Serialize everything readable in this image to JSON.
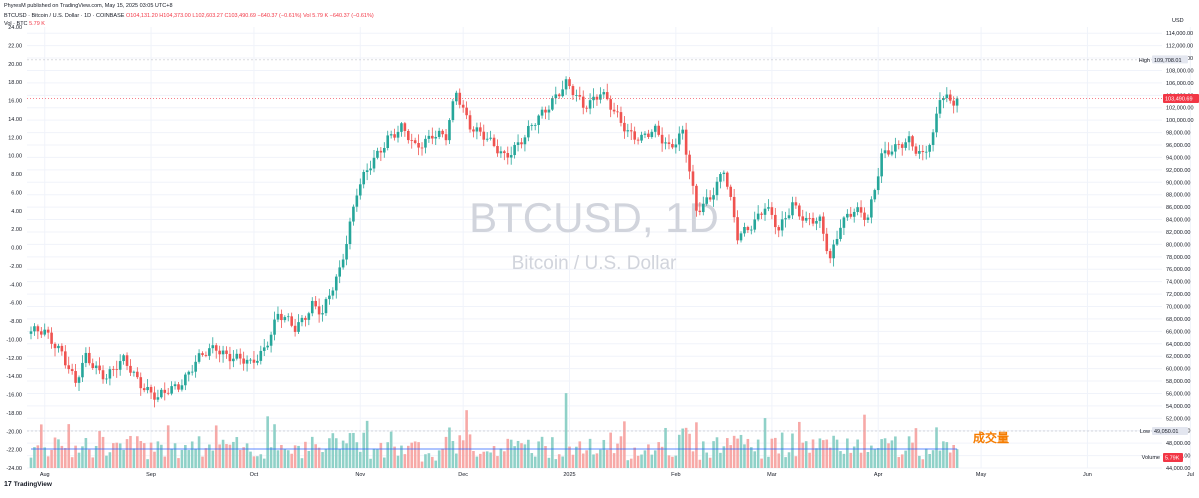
{
  "header": {
    "publisher_line": "PhyresM published on TradingView.com, May 15, 2025 03:05 UTC+8",
    "symbol_line": "BTCUSD · Bitcoin / U.S. Dollar · 1D · COINBASE",
    "ohlc": {
      "o": "O104,131.20",
      "h": "H104,373.00",
      "l": "L102,603.27",
      "c": "C103,490.69",
      "chg": "−640.37 (−0.61%)",
      "vol": "Vol 5.79 K  −640.37 (−0.61%)"
    },
    "vol_line_label": "Vol · BTC",
    "vol_line_value": "5.79 K"
  },
  "watermark": {
    "title": "BTCUSD, 1D",
    "subtitle": "Bitcoin / U.S. Dollar"
  },
  "annotation": {
    "text": "成交量",
    "color": "#f57c00"
  },
  "footer": {
    "logo_text": "TradingView",
    "logo_mark": "17"
  },
  "right_axis": {
    "currency": "USD",
    "high_label": "High",
    "high_value": "109,708.01",
    "last_value": "103,490.69",
    "low_label": "Low",
    "low_value": "49,050.01",
    "volume_label": "Volume",
    "volume_value": "5.79K"
  },
  "colors": {
    "up": "#26a69a",
    "down": "#ef5350",
    "up_vol": "#8fd1c8",
    "down_vol": "#f7a9a7",
    "grid": "#f0f3fa",
    "axis_text": "#131722",
    "last_price": "#f23645",
    "high_line": "#b2b5be",
    "watermark": "#d1d4dc",
    "volume_ma": "#2962ff"
  },
  "chart_data": {
    "type": "candlestick",
    "symbol": "BTCUSD",
    "interval": "1D",
    "grid": true,
    "x_ticks": [
      "Aug",
      "Sep",
      "Oct",
      "Nov",
      "Dec",
      "2025",
      "Feb",
      "Mar",
      "Apr",
      "May",
      "Jun",
      "Jul"
    ],
    "right_ticks": [
      "114,000.00",
      "112,000.00",
      "110,000.00",
      "108,000.00",
      "106,000.00",
      "104,000.00",
      "102,000.00",
      "100,000.00",
      "98,000.00",
      "96,000.00",
      "94,000.00",
      "92,000.00",
      "90,000.00",
      "88,000.00",
      "86,000.00",
      "84,000.00",
      "82,000.00",
      "80,000.00",
      "78,000.00",
      "76,000.00",
      "74,000.00",
      "72,000.00",
      "70,000.00",
      "68,000.00",
      "66,000.00",
      "64,000.00",
      "62,000.00",
      "60,000.00",
      "58,000.00",
      "56,000.00",
      "54,000.00",
      "52,000.00",
      "50,000.00",
      "48,000.00",
      "46,000.00",
      "44,000.00"
    ],
    "left_ticks": [
      "24.00",
      "22.00",
      "20.00",
      "18.00",
      "16.00",
      "14.00",
      "12.00",
      "10.00",
      "8.00",
      "6.00",
      "4.00",
      "2.00",
      "0.00",
      "-2.00",
      "-4.00",
      "-6.00",
      "-8.00",
      "-10.00",
      "-12.00",
      "-14.00",
      "-16.00",
      "-18.00",
      "-20.00",
      "-22.00",
      "-24.00"
    ],
    "right_range": [
      44000,
      115000
    ],
    "left_range": [
      -24,
      24
    ],
    "last_close": 103490.69,
    "period_high": 109708.01,
    "close_anchors": [
      [
        0,
        66000
      ],
      [
        4,
        65500
      ],
      [
        9,
        63000
      ],
      [
        13,
        57500
      ],
      [
        16,
        61500
      ],
      [
        22,
        59000
      ],
      [
        27,
        61000
      ],
      [
        31,
        58500
      ],
      [
        37,
        55000
      ],
      [
        43,
        57500
      ],
      [
        48,
        61000
      ],
      [
        54,
        63500
      ],
      [
        60,
        61500
      ],
      [
        64,
        60500
      ],
      [
        68,
        63500
      ],
      [
        72,
        68500
      ],
      [
        77,
        66500
      ],
      [
        82,
        70500
      ],
      [
        85,
        68500
      ],
      [
        90,
        76000
      ],
      [
        95,
        88500
      ],
      [
        98,
        91500
      ],
      [
        104,
        97500
      ],
      [
        108,
        98500
      ],
      [
        112,
        95500
      ],
      [
        117,
        98000
      ],
      [
        121,
        97000
      ],
      [
        124,
        104500
      ],
      [
        128,
        99500
      ],
      [
        134,
        96000
      ],
      [
        138,
        94500
      ],
      [
        144,
        97000
      ],
      [
        148,
        100500
      ],
      [
        152,
        103500
      ],
      [
        156,
        105500
      ],
      [
        161,
        102500
      ],
      [
        166,
        104500
      ],
      [
        170,
        101000
      ],
      [
        174,
        98500
      ],
      [
        178,
        97000
      ],
      [
        182,
        98000
      ],
      [
        186,
        96000
      ],
      [
        190,
        98000
      ],
      [
        194,
        85000
      ],
      [
        198,
        88000
      ],
      [
        202,
        92000
      ],
      [
        206,
        81000
      ],
      [
        210,
        83500
      ],
      [
        214,
        86000
      ],
      [
        218,
        82000
      ],
      [
        222,
        87000
      ],
      [
        226,
        83500
      ],
      [
        230,
        83500
      ],
      [
        233,
        78000
      ],
      [
        236,
        83500
      ],
      [
        240,
        85000
      ],
      [
        244,
        84500
      ],
      [
        248,
        94500
      ],
      [
        252,
        95000
      ],
      [
        256,
        97000
      ],
      [
        260,
        94500
      ],
      [
        263,
        97000
      ],
      [
        265,
        103500
      ],
      [
        268,
        103500
      ],
      [
        270,
        103490.69
      ]
    ]
  }
}
